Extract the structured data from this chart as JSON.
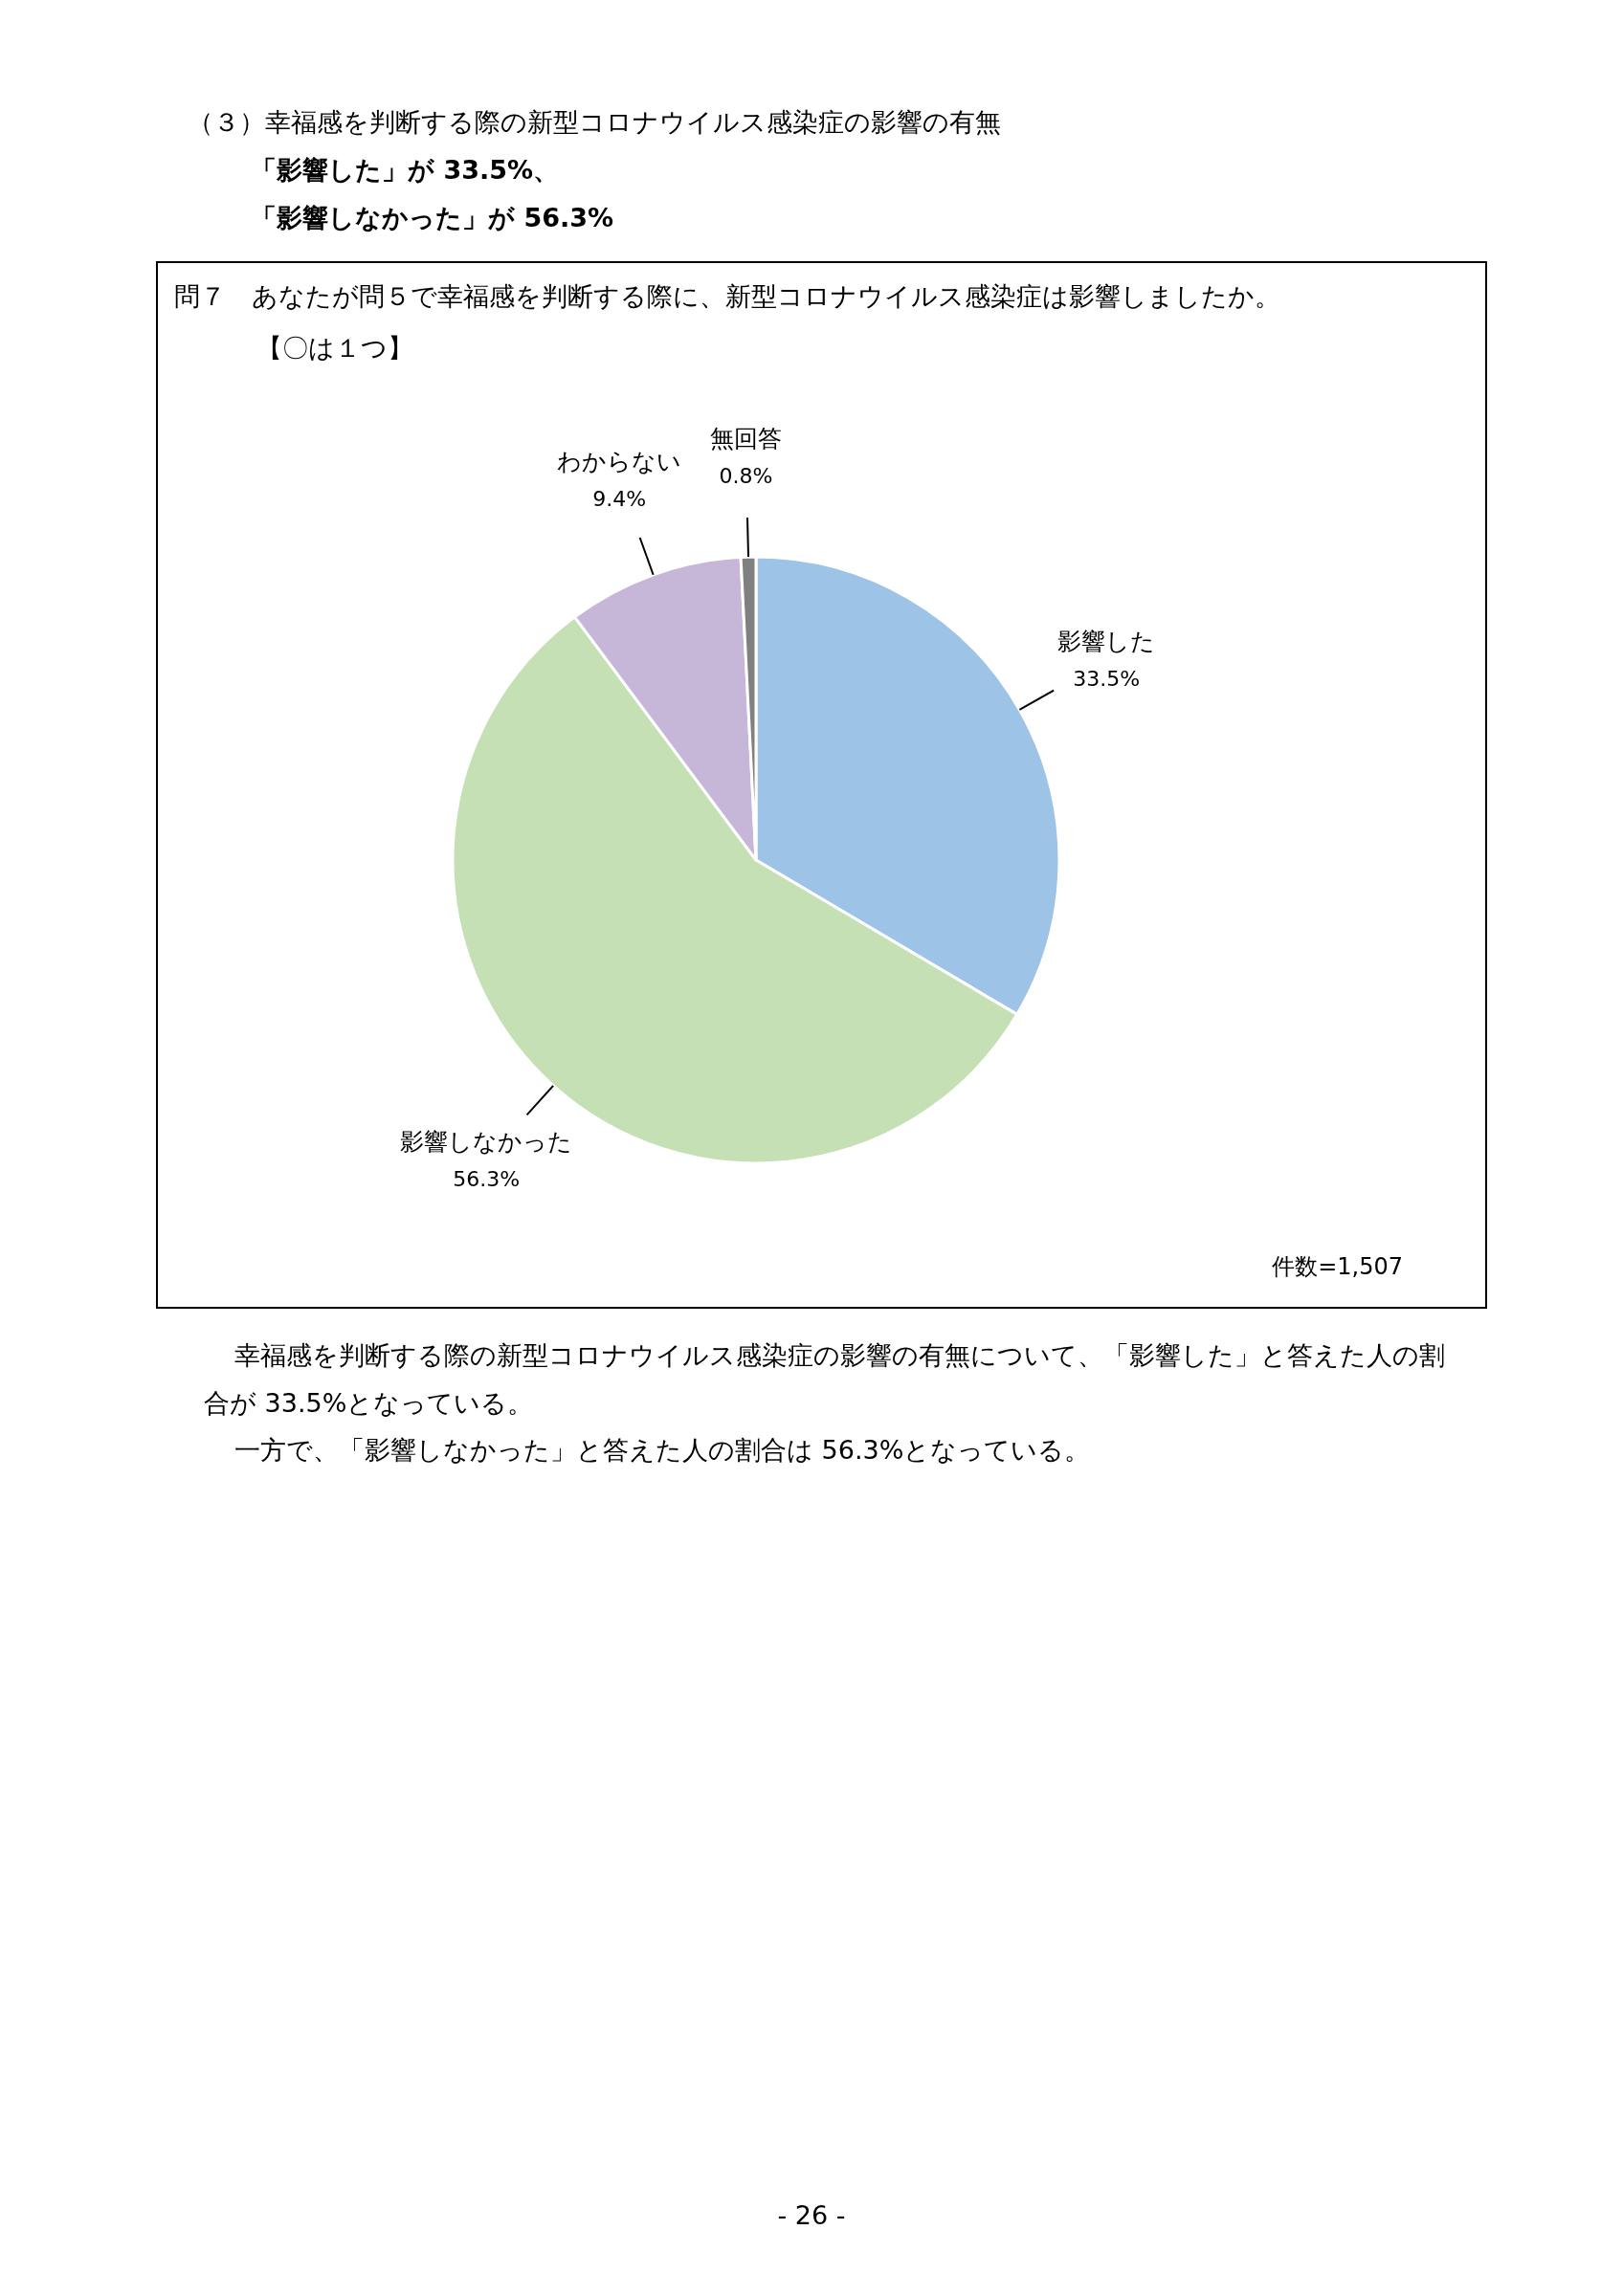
{
  "chart_data": {
    "type": "pie",
    "title": "（３）幸福感を判断する際の新型コロナウイルス感染症の影響の有無",
    "subtitle": "「影響した」が 33.5%、",
    "categories": [
      "影響した",
      "影響しなかった",
      "わからない",
      "無回答"
    ],
    "values": [
      33.5,
      56.3,
      9.4,
      0.8
    ],
    "value_labels": [
      "33.5%",
      "56.3%",
      "9.4%",
      "0.8%"
    ],
    "colors": [
      "#9dc3e6",
      "#c5e0b4",
      "#c6b7d9",
      "#808080"
    ],
    "annotations": [
      "「影響しなかった」が 56.3%",
      "問７　あなたが問５で幸福感を判断する際に、新型コロナウイルス感染症は影響しましたか。",
      "【〇は１つ】",
      "件数=1,507",
      "幸福感を判断する際の新型コロナウイルス感染症の影響の有無について、「影響した」と答えた人の割合が 33.5%となっている。",
      "一方で、「影響しなかった」と答えた人の割合は 56.3%となっている。",
      "- 26 -"
    ]
  }
}
